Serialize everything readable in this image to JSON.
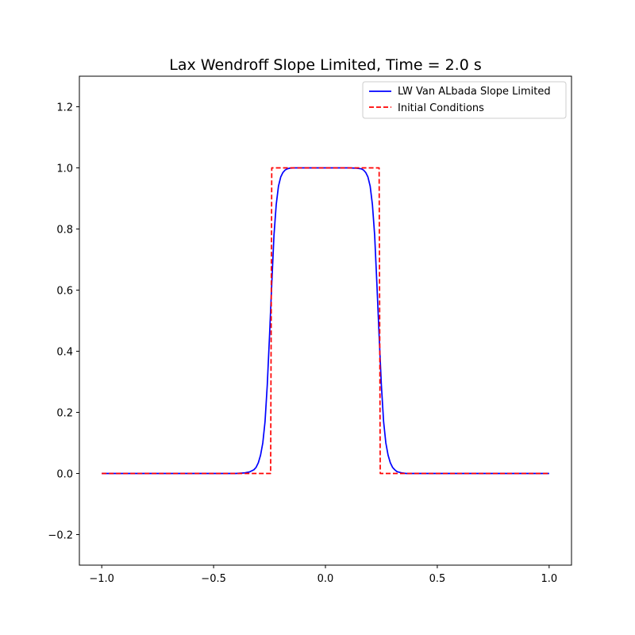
{
  "chart_data": {
    "type": "line",
    "title": "Lax Wendroff Slope Limited, Time = 2.0 s",
    "xlabel": "",
    "ylabel": "",
    "xlim": [
      -1.1,
      1.1
    ],
    "ylim": [
      -0.3,
      1.3
    ],
    "xticks": [
      -1.0,
      -0.5,
      0.0,
      0.5,
      1.0
    ],
    "xtick_labels": [
      "−1.0",
      "−0.5",
      "0.0",
      "0.5",
      "1.0"
    ],
    "yticks": [
      -0.2,
      0.0,
      0.2,
      0.4,
      0.6,
      0.8,
      1.0,
      1.2
    ],
    "ytick_labels": [
      "−0.2",
      "0.0",
      "0.2",
      "0.4",
      "0.6",
      "0.8",
      "1.0",
      "1.2"
    ],
    "grid": false,
    "legend_position": "top-right",
    "series": [
      {
        "name": "LW Van ALbada Slope Limited",
        "color": "#0000ff",
        "style": "solid",
        "x": [
          -1.0,
          -0.5,
          -0.4,
          -0.36,
          -0.34,
          -0.32,
          -0.31,
          -0.3,
          -0.29,
          -0.28,
          -0.27,
          -0.26,
          -0.25,
          -0.24,
          -0.23,
          -0.22,
          -0.21,
          -0.2,
          -0.19,
          -0.18,
          -0.17,
          -0.16,
          -0.14,
          -0.1,
          0.0,
          0.1,
          0.14,
          0.16,
          0.17,
          0.18,
          0.19,
          0.2,
          0.21,
          0.22,
          0.23,
          0.24,
          0.25,
          0.26,
          0.27,
          0.28,
          0.29,
          0.3,
          0.31,
          0.32,
          0.34,
          0.36,
          0.4,
          0.5,
          1.0
        ],
        "y": [
          0.0,
          0.0,
          0.0,
          0.002,
          0.005,
          0.012,
          0.02,
          0.035,
          0.06,
          0.1,
          0.17,
          0.29,
          0.45,
          0.62,
          0.78,
          0.88,
          0.94,
          0.97,
          0.985,
          0.993,
          0.997,
          0.999,
          1.0,
          1.0,
          1.0,
          1.0,
          0.999,
          0.997,
          0.993,
          0.985,
          0.97,
          0.94,
          0.88,
          0.78,
          0.62,
          0.45,
          0.29,
          0.17,
          0.1,
          0.06,
          0.035,
          0.02,
          0.012,
          0.006,
          0.002,
          0.0,
          0.0,
          0.0,
          0.0
        ]
      },
      {
        "name": "Initial Conditions",
        "color": "#ff0000",
        "style": "dashed",
        "x": [
          -1.0,
          -0.245,
          -0.24,
          0.24,
          0.245,
          1.0
        ],
        "y": [
          0.0,
          0.0,
          1.0,
          1.0,
          0.0,
          0.0
        ]
      }
    ]
  }
}
